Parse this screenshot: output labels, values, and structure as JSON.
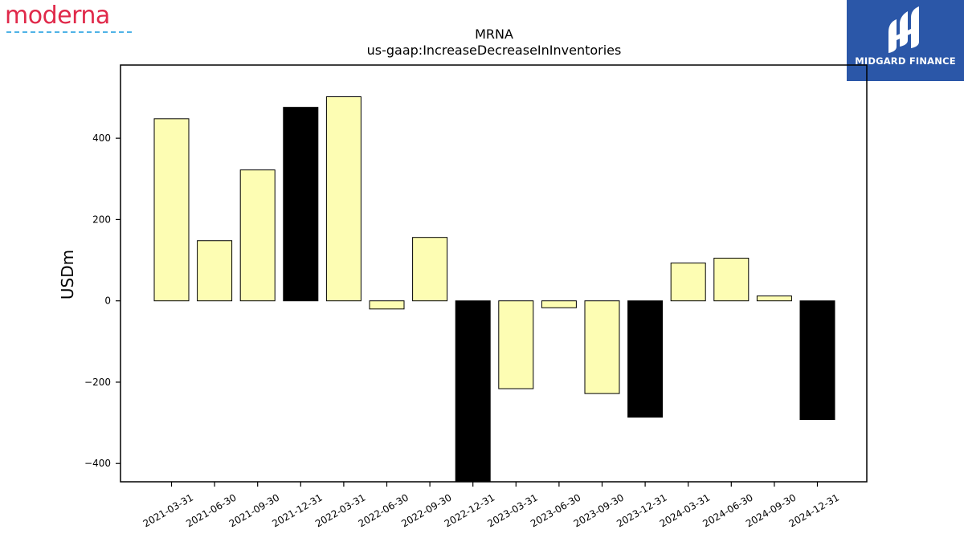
{
  "brands": {
    "left_logo": "moderna",
    "right_logo": "MIDGARD FINANCE"
  },
  "colors": {
    "positive_bar": "#fdfdb3",
    "q4_bar": "#000000",
    "bar_edge": "#000000",
    "moderna_red": "#e0294a",
    "midgard_blue": "#2b57a8"
  },
  "chart_data": {
    "type": "bar",
    "title": "MRNA",
    "subtitle": "us-gaap:IncreaseDecreaseInInventories",
    "xlabel": "",
    "ylabel": "USDm",
    "ylim": [
      -445,
      580
    ],
    "yticks": [
      -400,
      -200,
      0,
      200,
      400
    ],
    "grid": false,
    "categories": [
      "2021-03-31",
      "2021-06-30",
      "2021-09-30",
      "2021-12-31",
      "2022-03-31",
      "2022-06-30",
      "2022-09-30",
      "2022-12-31",
      "2023-03-31",
      "2023-06-30",
      "2023-09-30",
      "2023-12-31",
      "2024-03-31",
      "2024-06-30",
      "2024-09-30",
      "2024-12-31"
    ],
    "values": [
      448,
      148,
      322,
      476,
      502,
      -20,
      156,
      -445,
      -216,
      -17,
      -228,
      -286,
      93,
      105,
      12,
      -292
    ],
    "highlight_q4": true
  }
}
